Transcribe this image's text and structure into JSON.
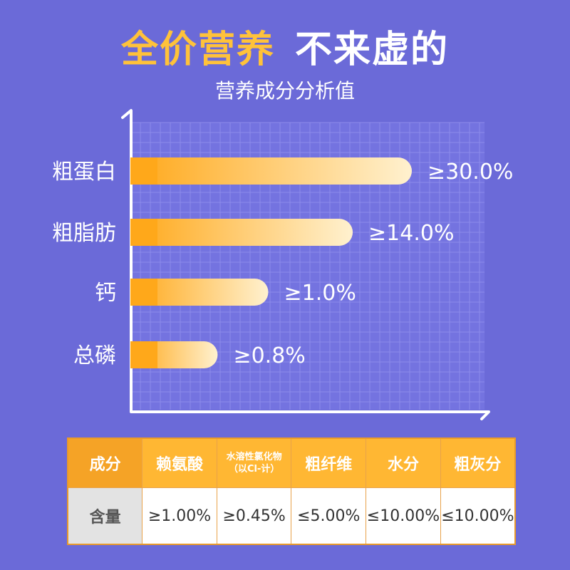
{
  "header": {
    "title_part1": "全价营养",
    "title_part2": "不来虚的",
    "subtitle": "营养成分分析值"
  },
  "colors": {
    "background": "#6b6ad8",
    "accent": "#ffc23a",
    "bar_start": "#ffa81a",
    "bar_end": "#fff1cf",
    "table_header": "#ffb733"
  },
  "chart_data": {
    "type": "bar",
    "orientation": "horizontal",
    "categories": [
      "粗蛋白",
      "粗脂肪",
      "钙",
      "总磷"
    ],
    "values": [
      30.0,
      14.0,
      1.0,
      0.8
    ],
    "value_labels": [
      "≥30.0%",
      "≥14.0%",
      "≥1.0%",
      "≥0.8%"
    ],
    "grid": true
  },
  "table": {
    "header": [
      "成分",
      "赖氨酸",
      "水溶性氯化物",
      "（以Cl-计）",
      "粗纤维",
      "水分",
      "粗灰分"
    ],
    "row_label": "含量",
    "values": [
      "≥1.00%",
      "≥0.45%",
      "≤5.00%",
      "≤10.00%",
      "≤10.00%"
    ]
  }
}
